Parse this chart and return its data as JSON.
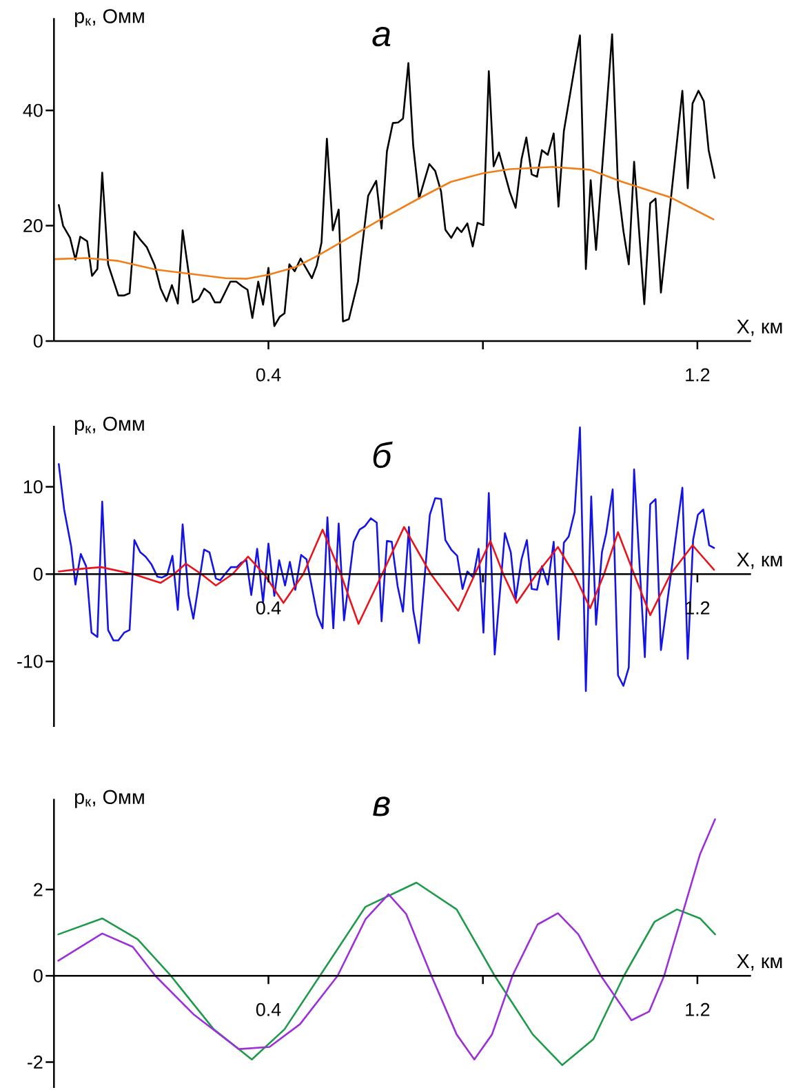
{
  "chart_data": [
    {
      "type": "line",
      "title": "а",
      "xlabel": "X, км",
      "ylabel": "р$_{к}$, Омм",
      "xlim": [
        0,
        1.3
      ],
      "ylim": [
        0,
        56
      ],
      "xticks": [
        {
          "value": 0,
          "label": null
        },
        {
          "value": 0.4,
          "label": "0.4"
        },
        {
          "value": 0.8,
          "label": null
        },
        {
          "value": 1.2,
          "label": "1.2"
        }
      ],
      "yticks": [
        0,
        20,
        40
      ],
      "marker": "none",
      "series": [
        {
          "color": "#000000",
          "x": [
            0.009,
            0.017,
            0.03,
            0.04,
            0.049,
            0.062,
            0.071,
            0.081,
            0.09,
            0.101,
            0.12,
            0.131,
            0.141,
            0.15,
            0.16,
            0.173,
            0.188,
            0.199,
            0.21,
            0.22,
            0.231,
            0.24,
            0.259,
            0.27,
            0.28,
            0.291,
            0.3,
            0.31,
            0.329,
            0.34,
            0.351,
            0.361,
            0.37,
            0.381,
            0.39,
            0.4,
            0.411,
            0.421,
            0.43,
            0.439,
            0.449,
            0.46,
            0.471,
            0.481,
            0.49,
            0.499,
            0.509,
            0.52,
            0.531,
            0.539,
            0.55,
            0.567,
            0.586,
            0.601,
            0.611,
            0.621,
            0.632,
            0.642,
            0.651,
            0.661,
            0.67,
            0.681,
            0.7,
            0.711,
            0.722,
            0.73,
            0.741,
            0.752,
            0.76,
            0.771,
            0.781,
            0.79,
            0.801,
            0.811,
            0.82,
            0.83,
            0.85,
            0.861,
            0.872,
            0.881,
            0.891,
            0.901,
            0.91,
            0.921,
            0.932,
            0.941,
            0.951,
            0.981,
            0.992,
            1.001,
            1.011,
            1.041,
            1.052,
            1.062,
            1.072,
            1.082,
            1.101,
            1.112,
            1.122,
            1.132,
            1.172,
            1.182,
            1.191,
            1.202,
            1.212,
            1.221,
            1.232
          ],
          "values": [
            23.6,
            20.0,
            17.9,
            14.1,
            18.1,
            17.3,
            11.3,
            12.5,
            29.2,
            13.3,
            7.9,
            7.9,
            8.3,
            19.0,
            17.7,
            16.3,
            13.1,
            9.1,
            6.9,
            9.7,
            6.5,
            19.2,
            6.7,
            7.3,
            9.1,
            8.3,
            6.7,
            6.7,
            10.3,
            10.3,
            9.5,
            8.9,
            4.0,
            10.3,
            6.3,
            12.7,
            2.6,
            4.2,
            4.8,
            13.3,
            12.1,
            14.3,
            12.5,
            10.9,
            13.1,
            17.1,
            35.1,
            19.2,
            22.8,
            3.4,
            3.8,
            10.3,
            25.2,
            27.8,
            19.5,
            32.9,
            37.8,
            37.9,
            38.6,
            48.2,
            33.9,
            24.7,
            30.7,
            29.5,
            25.9,
            19.3,
            17.9,
            19.7,
            18.9,
            20.4,
            16.4,
            20.5,
            20.1,
            46.8,
            30.3,
            32.7,
            25.9,
            23.1,
            31.5,
            35.3,
            28.9,
            28.5,
            33.1,
            32.3,
            36.0,
            23.3,
            36.4,
            53.0,
            12.5,
            27.9,
            15.8,
            53.2,
            26.7,
            19.1,
            13.3,
            31.1,
            6.4,
            23.9,
            24.7,
            8.4,
            43.4,
            26.5,
            41.2,
            43.4,
            41.6,
            33.1,
            28.3
          ]
        },
        {
          "color": "#f07f1a",
          "x": [
            0.0,
            0.06,
            0.12,
            0.19,
            0.25,
            0.32,
            0.36,
            0.4,
            0.45,
            0.49,
            0.55,
            0.6,
            0.68,
            0.74,
            0.8,
            0.85,
            0.93,
            1.0,
            1.06,
            1.15,
            1.23
          ],
          "values": [
            14.2,
            14.4,
            13.9,
            12.4,
            11.7,
            10.9,
            10.8,
            11.5,
            12.8,
            14.7,
            17.9,
            20.6,
            24.7,
            27.6,
            29.1,
            29.8,
            30.2,
            29.7,
            27.6,
            24.9,
            21.1
          ]
        }
      ]
    },
    {
      "type": "line",
      "title": "б",
      "xlabel": "X, км",
      "ylabel": "р$_{к}$, Омм",
      "xlim": [
        0,
        1.3
      ],
      "ylim": [
        -17.5,
        17
      ],
      "xticks": [
        {
          "value": 0.4,
          "label": "0.4"
        },
        {
          "value": 0.8,
          "label": null
        },
        {
          "value": 1.2,
          "label": "1.2"
        }
      ],
      "yticks": [
        -10,
        0,
        10
      ],
      "marker": "none",
      "series": [
        {
          "color": "#1414e6",
          "x": [
            0.009,
            0.019,
            0.032,
            0.04,
            0.05,
            0.06,
            0.07,
            0.081,
            0.09,
            0.101,
            0.111,
            0.12,
            0.131,
            0.141,
            0.15,
            0.161,
            0.171,
            0.182,
            0.193,
            0.201,
            0.211,
            0.221,
            0.231,
            0.24,
            0.251,
            0.26,
            0.28,
            0.29,
            0.302,
            0.31,
            0.319,
            0.33,
            0.341,
            0.349,
            0.359,
            0.368,
            0.379,
            0.39,
            0.4,
            0.411,
            0.42,
            0.431,
            0.44,
            0.45,
            0.461,
            0.471,
            0.491,
            0.501,
            0.51,
            0.521,
            0.531,
            0.541,
            0.559,
            0.57,
            0.58,
            0.591,
            0.602,
            0.611,
            0.621,
            0.63,
            0.641,
            0.651,
            0.662,
            0.67,
            0.681,
            0.701,
            0.711,
            0.722,
            0.73,
            0.741,
            0.752,
            0.762,
            0.771,
            0.782,
            0.792,
            0.801,
            0.811,
            0.822,
            0.841,
            0.852,
            0.861,
            0.872,
            0.882,
            0.891,
            0.901,
            0.91,
            0.921,
            0.932,
            0.941,
            0.951,
            0.96,
            0.971,
            0.981,
            0.992,
            1.002,
            1.011,
            1.022,
            1.03,
            1.042,
            1.052,
            1.062,
            1.072,
            1.082,
            1.102,
            1.112,
            1.122,
            1.132,
            1.172,
            1.182,
            1.192,
            1.201,
            1.211,
            1.222,
            1.231
          ],
          "values": [
            12.6,
            7.4,
            3.2,
            -1.2,
            2.3,
            0.9,
            -6.7,
            -7.2,
            8.3,
            -6.4,
            -7.6,
            -7.6,
            -6.7,
            -6.4,
            3.9,
            2.5,
            2.0,
            1.1,
            -0.3,
            -0.4,
            -0.1,
            2.1,
            -4.1,
            5.7,
            -2.4,
            -5.1,
            2.8,
            2.5,
            -0.5,
            -0.7,
            0,
            0.8,
            0.8,
            1.3,
            1.6,
            -2.4,
            2.9,
            -3.2,
            3.5,
            -2.5,
            1.6,
            -1.3,
            1.4,
            -1.8,
            2.2,
            1.7,
            -4.7,
            -6.2,
            6.5,
            -6.2,
            5.8,
            -5.3,
            3.7,
            5.1,
            5.5,
            6.4,
            5.9,
            -5.4,
            3.8,
            3.7,
            -1.4,
            -4.3,
            5.4,
            -4.1,
            -7.9,
            6.8,
            8.7,
            8.6,
            3.9,
            2.8,
            2.1,
            -1.7,
            0.3,
            -0.4,
            2.9,
            -6.7,
            9.3,
            -9.2,
            4.7,
            2.5,
            -2.9,
            1.7,
            3.9,
            -1.7,
            -1.8,
            0.9,
            -1.2,
            3.7,
            -7.5,
            3.6,
            4.3,
            7.1,
            16.8,
            -13.4,
            8.9,
            -5.8,
            2.5,
            4.7,
            9.7,
            -11.6,
            -12.8,
            -10.7,
            12.0,
            -9.5,
            8.0,
            8.6,
            -8.7,
            9.9,
            -9.7,
            3.9,
            6.8,
            7.4,
            3.3,
            3.0
          ]
        },
        {
          "color": "#e8141c",
          "x": [
            0.009,
            0.05,
            0.088,
            0.148,
            0.199,
            0.224,
            0.246,
            0.275,
            0.302,
            0.333,
            0.362,
            0.392,
            0.428,
            0.465,
            0.501,
            0.535,
            0.568,
            0.612,
            0.653,
            0.703,
            0.754,
            0.785,
            0.814,
            0.838,
            0.863,
            0.9,
            0.94,
            0.97,
            1.0,
            1.026,
            1.052,
            1.082,
            1.112,
            1.15,
            1.191,
            1.231
          ],
          "values": [
            0.3,
            0.6,
            0.8,
            0,
            -1.0,
            0,
            1.2,
            0,
            -1.3,
            0,
            2.0,
            0,
            -3.3,
            0,
            5.1,
            0,
            -5.7,
            0,
            5.4,
            0,
            -4.2,
            0,
            3.8,
            0,
            -3.3,
            0,
            3.1,
            0,
            -3.9,
            0,
            4.8,
            0,
            -4.7,
            0,
            3.3,
            0.5
          ]
        }
      ]
    },
    {
      "type": "line",
      "title": "в",
      "xlabel": "X, км",
      "ylabel": "р$_{к}$, Омм",
      "xlim": [
        0,
        1.3
      ],
      "ylim": [
        -2.6,
        4.1
      ],
      "xticks": [
        {
          "value": 0.4,
          "label": "0.4"
        },
        {
          "value": 0.8,
          "label": null
        },
        {
          "value": 1.2,
          "label": "1.2"
        }
      ],
      "yticks": [
        -2,
        0,
        2
      ],
      "marker": "none",
      "series": [
        {
          "color": "#1f9a4a",
          "x": [
            0.008,
            0.09,
            0.156,
            0.218,
            0.298,
            0.369,
            0.43,
            0.496,
            0.581,
            0.676,
            0.751,
            0.822,
            0.893,
            0.948,
            1.006,
            1.063,
            1.12,
            1.162,
            1.205,
            1.233
          ],
          "values": [
            0.96,
            1.33,
            0.85,
            0,
            -1.24,
            -1.94,
            -1.24,
            0,
            1.6,
            2.16,
            1.54,
            0,
            -1.36,
            -2.07,
            -1.47,
            0,
            1.25,
            1.54,
            1.33,
            0.96
          ]
        },
        {
          "color": "#9b30d9",
          "x": [
            0.008,
            0.09,
            0.147,
            0.189,
            0.26,
            0.345,
            0.402,
            0.459,
            0.529,
            0.581,
            0.624,
            0.657,
            0.704,
            0.751,
            0.784,
            0.817,
            0.855,
            0.902,
            0.94,
            0.978,
            1.02,
            1.077,
            1.11,
            1.138,
            1.176,
            1.205,
            1.233
          ],
          "values": [
            0.35,
            0.98,
            0.67,
            0,
            -0.89,
            -1.7,
            -1.65,
            -1.12,
            0,
            1.31,
            1.89,
            1.43,
            0,
            -1.36,
            -1.94,
            -1.36,
            0,
            1.19,
            1.45,
            0.96,
            0,
            -1.03,
            -0.83,
            0,
            1.6,
            2.82,
            3.63
          ]
        }
      ]
    }
  ]
}
